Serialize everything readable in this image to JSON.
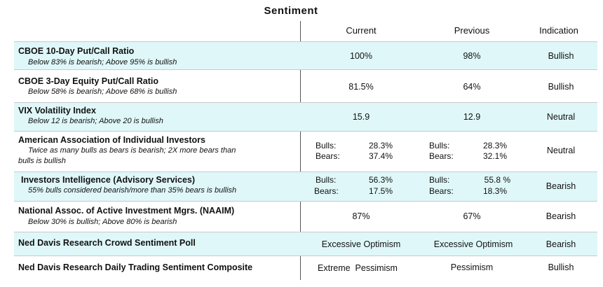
{
  "title": "Sentiment",
  "columns": {
    "current": "Current",
    "previous": "Previous",
    "indication": "Indication"
  },
  "rows": [
    {
      "name": "CBOE 10-Day Put/Call Ratio",
      "desc": "Below 83% is bearish; Above 95% is bullish",
      "current": "100%",
      "previous": "98%",
      "indication": "Bullish"
    },
    {
      "name": "CBOE 3-Day Equity Put/Call Ratio",
      "desc": "Below 58% is bearish; Above 68% is bullish",
      "current": "81.5%",
      "previous": "64%",
      "indication": "Bullish"
    },
    {
      "name": "VIX Volatility Index",
      "desc": "Below 12 is bearish; Above 20 is bullish",
      "current": "15.9",
      "previous": "12.9",
      "indication": "Neutral"
    },
    {
      "name": "American Association of Individual Investors",
      "desc_line1": "Twice as many bulls as bears is bearish; 2X more bears than",
      "desc_line2": "bulls is bullish",
      "bulls_label": "Bulls:",
      "bears_label": "Bears:",
      "current_bulls": "28.3%",
      "current_bears": "37.4%",
      "previous_bulls": "28.3%",
      "previous_bears": "32.1%",
      "indication": "Neutral"
    },
    {
      "name": "Investors Intelligence (Advisory Services)",
      "desc": "55% bulls considered bearish/more than 35% bears is bullish",
      "bulls_label": "Bulls:",
      "bears_label": "Bears:",
      "current_bulls": "56.3%",
      "current_bears": "17.5%",
      "previous_bulls": "55.8 %",
      "previous_bears": "18.3%",
      "indication": "Bearish"
    },
    {
      "name": "National Assoc. of Active Investment Mgrs. (NAAIM)",
      "desc": "Below 30% is bullish; Above 80% is bearish",
      "current": "87%",
      "previous": "67%",
      "indication": "Bearish"
    },
    {
      "name": "Ned Davis Research Crowd Sentiment Poll",
      "current": "Excessive Optimism",
      "previous": "Excessive Optimism",
      "indication": "Bearish"
    },
    {
      "name": "Ned Davis Research Daily Trading Sentiment Composite",
      "current": "Extreme  Pessimism",
      "previous": "Pessimism",
      "indication": "Bullish"
    }
  ],
  "colors": {
    "shaded_row": "#dff7f9",
    "divider": "#555555"
  }
}
